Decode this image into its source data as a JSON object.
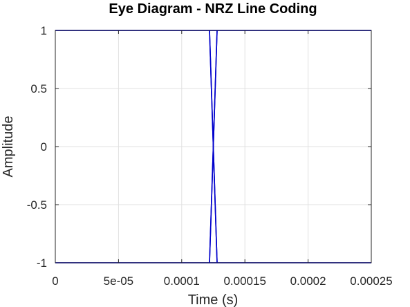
{
  "chart_data": {
    "type": "line",
    "title": "Eye Diagram - NRZ Line Coding",
    "xlabel": "Time (s)",
    "ylabel": "Amplitude",
    "xlim": [
      0,
      0.00025
    ],
    "ylim": [
      -1,
      1
    ],
    "grid": true,
    "x_ticks": [
      0,
      5e-05,
      0.0001,
      0.00015,
      0.0002,
      0.00025
    ],
    "x_tick_labels": [
      "0",
      "5e-05",
      "0.0001",
      "0.00015",
      "0.0002",
      "0.00025"
    ],
    "y_ticks": [
      -1,
      -0.5,
      0,
      0.5,
      1
    ],
    "y_tick_labels": [
      "-1",
      "-0.5",
      "0",
      "0.5",
      "1"
    ],
    "line_color": "#0000cc",
    "series": [
      {
        "x": [
          0,
          0.000122,
          0.000128,
          0.00025
        ],
        "y": [
          1,
          1,
          -1,
          -1
        ]
      },
      {
        "x": [
          0,
          0.000122,
          0.000128,
          0.00025
        ],
        "y": [
          -1,
          -1,
          1,
          1
        ]
      },
      {
        "x": [
          0,
          0.000128,
          0.000122,
          0.00025
        ],
        "y": [
          1,
          1,
          -1,
          -1
        ]
      },
      {
        "x": [
          0,
          0.000128,
          0.000122,
          0.00025
        ],
        "y": [
          -1,
          -1,
          1,
          1
        ]
      }
    ]
  }
}
